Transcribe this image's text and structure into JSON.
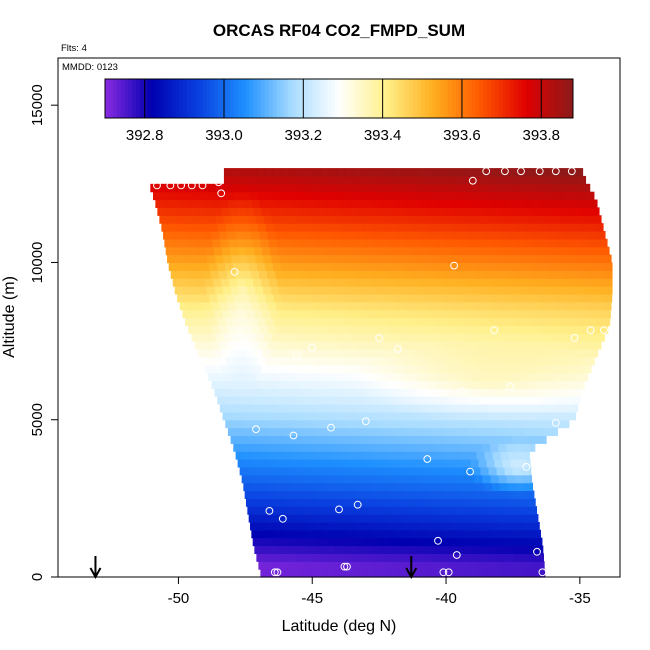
{
  "chart_data": {
    "type": "heatmap",
    "title": "ORCAS RF04 CO2_FMPD_SUM",
    "annotations": {
      "flights": "Flts: 4",
      "date": "MMDD: 0123"
    },
    "xlabel": "Latitude (deg N)",
    "ylabel": "Altitude (m)",
    "xlim": [
      -54.5,
      -33.5
    ],
    "ylim": [
      0,
      16500
    ],
    "xticks": [
      -50,
      -45,
      -40,
      -35
    ],
    "xtick_labels": [
      "-50",
      "-45",
      "-40",
      "-35"
    ],
    "yticks": [
      0,
      5000,
      10000,
      15000
    ],
    "ytick_labels": [
      "0",
      "5000",
      "10000",
      "15000"
    ],
    "colorbar": {
      "range": [
        392.7,
        393.88
      ],
      "ticks": [
        392.8,
        393.0,
        393.2,
        393.4,
        393.6,
        393.8
      ],
      "tick_labels": [
        "392.8",
        "393.0",
        "393.2",
        "393.4",
        "393.6",
        "393.8"
      ],
      "colors": [
        "#8b2be2",
        "#0000b0",
        "#0a40e0",
        "#1e90ff",
        "#a8dcff",
        "#ffffff",
        "#fff08a",
        "#ffb020",
        "#ff5a00",
        "#e00000",
        "#8b1a1a"
      ]
    },
    "field_extent": {
      "alt_step": 250,
      "left_boundary_lat": [
        [
          0,
          -46.9
        ],
        [
          1000,
          -47.2
        ],
        [
          2000,
          -47.4
        ],
        [
          3000,
          -47.6
        ],
        [
          4000,
          -47.9
        ],
        [
          5000,
          -48.3
        ],
        [
          6000,
          -48.7
        ],
        [
          7000,
          -49.2
        ],
        [
          8000,
          -49.7
        ],
        [
          9000,
          -50.1
        ],
        [
          10000,
          -50.4
        ],
        [
          11000,
          -50.6
        ],
        [
          12000,
          -50.9
        ],
        [
          12500,
          -51.1
        ]
      ],
      "right_boundary_lat": [
        [
          0,
          -36.3
        ],
        [
          1000,
          -36.4
        ],
        [
          2000,
          -36.6
        ],
        [
          3000,
          -36.8
        ],
        [
          4000,
          -36.9
        ],
        [
          5000,
          -35.2
        ],
        [
          6000,
          -34.9
        ],
        [
          7000,
          -34.4
        ],
        [
          8000,
          -33.9
        ],
        [
          9000,
          -33.8
        ],
        [
          10000,
          -33.8
        ],
        [
          11000,
          -34.1
        ],
        [
          12000,
          -34.4
        ],
        [
          12800,
          -34.9
        ]
      ],
      "top_alt_west": 12450,
      "top_alt_east": 12800,
      "top_west_lat_limit": -48.3
    },
    "observations": [
      {
        "lat": -50.8,
        "alt": 12450
      },
      {
        "lat": -50.3,
        "alt": 12450
      },
      {
        "lat": -49.9,
        "alt": 12450
      },
      {
        "lat": -49.5,
        "alt": 12450
      },
      {
        "lat": -49.1,
        "alt": 12450
      },
      {
        "lat": -48.5,
        "alt": 12550
      },
      {
        "lat": -48.4,
        "alt": 12200
      },
      {
        "lat": -39.0,
        "alt": 12600
      },
      {
        "lat": -38.5,
        "alt": 12900
      },
      {
        "lat": -37.8,
        "alt": 12900
      },
      {
        "lat": -37.2,
        "alt": 12900
      },
      {
        "lat": -36.5,
        "alt": 12900
      },
      {
        "lat": -35.9,
        "alt": 12900
      },
      {
        "lat": -35.3,
        "alt": 12900
      },
      {
        "lat": -34.7,
        "alt": 12900
      },
      {
        "lat": -34.2,
        "alt": 12300
      },
      {
        "lat": -39.7,
        "alt": 9900
      },
      {
        "lat": -33.6,
        "alt": 10100
      },
      {
        "lat": -47.9,
        "alt": 9700
      },
      {
        "lat": -38.2,
        "alt": 7850
      },
      {
        "lat": -34.6,
        "alt": 7850
      },
      {
        "lat": -34.1,
        "alt": 7850
      },
      {
        "lat": -33.6,
        "alt": 8200
      },
      {
        "lat": -35.2,
        "alt": 7600
      },
      {
        "lat": -42.5,
        "alt": 7600
      },
      {
        "lat": -41.8,
        "alt": 7250
      },
      {
        "lat": -45.0,
        "alt": 7300
      },
      {
        "lat": -45.6,
        "alt": 7050
      },
      {
        "lat": -47.4,
        "alt": 7250
      },
      {
        "lat": -39.4,
        "alt": 5900
      },
      {
        "lat": -37.6,
        "alt": 6050
      },
      {
        "lat": -43.0,
        "alt": 4950
      },
      {
        "lat": -44.3,
        "alt": 4750
      },
      {
        "lat": -45.7,
        "alt": 4500
      },
      {
        "lat": -47.1,
        "alt": 4700
      },
      {
        "lat": -35.9,
        "alt": 4900
      },
      {
        "lat": -40.7,
        "alt": 3750
      },
      {
        "lat": -39.1,
        "alt": 3350
      },
      {
        "lat": -37.0,
        "alt": 3500
      },
      {
        "lat": -35.8,
        "alt": 3850
      },
      {
        "lat": -43.3,
        "alt": 2300
      },
      {
        "lat": -44.0,
        "alt": 2150
      },
      {
        "lat": -46.6,
        "alt": 2100
      },
      {
        "lat": -46.1,
        "alt": 1850
      },
      {
        "lat": -40.3,
        "alt": 1150
      },
      {
        "lat": -39.6,
        "alt": 700
      },
      {
        "lat": -36.6,
        "alt": 800
      },
      {
        "lat": -43.8,
        "alt": 330
      },
      {
        "lat": -43.7,
        "alt": 330
      },
      {
        "lat": -40.1,
        "alt": 150
      },
      {
        "lat": -39.9,
        "alt": 150
      },
      {
        "lat": -46.4,
        "alt": 150
      },
      {
        "lat": -46.3,
        "alt": 150
      },
      {
        "lat": -36.4,
        "alt": 150
      }
    ],
    "arrows": [
      {
        "lat": -53.1
      },
      {
        "lat": -41.3
      }
    ]
  }
}
